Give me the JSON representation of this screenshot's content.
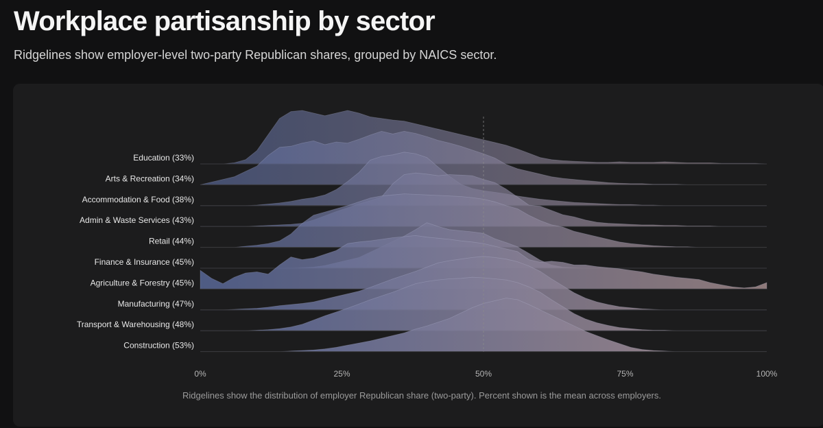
{
  "header": {
    "title": "Workplace partisanship by sector",
    "subtitle": "Ridgelines show employer-level two-party Republican shares, grouped by NAICS sector."
  },
  "caption": "Ridgelines show the distribution of employer Republican share (two-party). Percent shown is the mean across employers.",
  "chart_data": {
    "type": "area",
    "xlim": [
      0,
      100
    ],
    "xticks": [
      "0%",
      "25%",
      "50%",
      "75%",
      "100%"
    ],
    "reference_line": 50,
    "colors": {
      "low": "#5a6a9c",
      "high": "#a88f90"
    },
    "x": [
      0,
      2,
      4,
      6,
      8,
      10,
      12,
      14,
      16,
      18,
      20,
      22,
      24,
      26,
      28,
      30,
      32,
      34,
      36,
      38,
      40,
      42,
      44,
      46,
      48,
      50,
      52,
      54,
      56,
      58,
      60,
      62,
      64,
      66,
      68,
      70,
      72,
      74,
      76,
      78,
      80,
      82,
      84,
      86,
      88,
      90,
      92,
      94,
      96,
      98,
      100
    ],
    "series": [
      {
        "label": "Education (33%)",
        "mean": 33,
        "values": [
          0,
          0,
          0,
          0.02,
          0.08,
          0.25,
          0.55,
          0.85,
          0.98,
          1.0,
          0.95,
          0.9,
          0.95,
          1.0,
          0.95,
          0.88,
          0.85,
          0.82,
          0.8,
          0.75,
          0.7,
          0.65,
          0.6,
          0.55,
          0.5,
          0.45,
          0.4,
          0.35,
          0.28,
          0.2,
          0.12,
          0.08,
          0.06,
          0.05,
          0.04,
          0.03,
          0.03,
          0.04,
          0.03,
          0.03,
          0.03,
          0.04,
          0.03,
          0.02,
          0.02,
          0.02,
          0.01,
          0.01,
          0.01,
          0.01,
          0
        ]
      },
      {
        "label": "Arts & Recreation (34%)",
        "mean": 34,
        "values": [
          0,
          0.05,
          0.1,
          0.15,
          0.25,
          0.35,
          0.55,
          0.7,
          0.72,
          0.78,
          0.82,
          0.75,
          0.8,
          0.78,
          0.85,
          0.93,
          1.0,
          0.95,
          1.0,
          0.96,
          0.9,
          0.83,
          0.78,
          0.72,
          0.65,
          0.58,
          0.5,
          0.38,
          0.3,
          0.25,
          0.2,
          0.15,
          0.12,
          0.1,
          0.08,
          0.06,
          0.04,
          0.03,
          0.02,
          0.02,
          0.01,
          0.01,
          0.01,
          0,
          0,
          0,
          0,
          0,
          0,
          0,
          0
        ]
      },
      {
        "label": "Accommodation & Food (38%)",
        "mean": 38,
        "values": [
          0,
          0,
          0,
          0,
          0,
          0.01,
          0.03,
          0.05,
          0.08,
          0.12,
          0.15,
          0.2,
          0.3,
          0.45,
          0.62,
          0.85,
          0.92,
          0.95,
          1.0,
          0.97,
          0.9,
          0.72,
          0.55,
          0.4,
          0.32,
          0.28,
          0.25,
          0.22,
          0.18,
          0.15,
          0.12,
          0.1,
          0.08,
          0.06,
          0.05,
          0.04,
          0.03,
          0.02,
          0.02,
          0.01,
          0.01,
          0,
          0,
          0,
          0,
          0,
          0,
          0,
          0,
          0,
          0
        ]
      },
      {
        "label": "Admin & Waste Services (43%)",
        "mean": 43,
        "values": [
          0,
          0,
          0,
          0,
          0,
          0.01,
          0.02,
          0.03,
          0.04,
          0.06,
          0.12,
          0.2,
          0.28,
          0.35,
          0.42,
          0.48,
          0.55,
          0.8,
          0.97,
          1.0,
          0.98,
          0.95,
          0.97,
          0.96,
          0.95,
          0.88,
          0.82,
          0.7,
          0.55,
          0.4,
          0.38,
          0.3,
          0.22,
          0.18,
          0.12,
          0.08,
          0.06,
          0.05,
          0.04,
          0.03,
          0.03,
          0.02,
          0.02,
          0.01,
          0.01,
          0.01,
          0,
          0,
          0,
          0,
          0
        ]
      },
      {
        "label": "Retail (44%)",
        "mean": 44,
        "values": [
          0,
          0,
          0,
          0,
          0.02,
          0.04,
          0.07,
          0.12,
          0.25,
          0.45,
          0.6,
          0.66,
          0.72,
          0.78,
          0.85,
          0.92,
          0.96,
          0.98,
          1.0,
          0.99,
          0.98,
          0.97,
          0.96,
          0.95,
          0.93,
          0.9,
          0.85,
          0.78,
          0.72,
          0.6,
          0.5,
          0.42,
          0.38,
          0.3,
          0.25,
          0.2,
          0.15,
          0.1,
          0.07,
          0.05,
          0.03,
          0.02,
          0.01,
          0.01,
          0,
          0,
          0,
          0,
          0,
          0,
          0
        ]
      },
      {
        "label": "Finance & Insurance (45%)",
        "mean": 45,
        "values": [
          0,
          0,
          0,
          0,
          0,
          0,
          0,
          0,
          0,
          0.01,
          0.02,
          0.05,
          0.1,
          0.15,
          0.2,
          0.3,
          0.4,
          0.5,
          0.6,
          0.72,
          0.85,
          0.78,
          0.72,
          0.7,
          0.68,
          0.65,
          0.55,
          0.48,
          0.4,
          0.28,
          0.15,
          0.06,
          0.02,
          0.01,
          0,
          0,
          0,
          0,
          0,
          0,
          0,
          0,
          0,
          0,
          0,
          0,
          0,
          0,
          0,
          0,
          0
        ]
      },
      {
        "label": "Agriculture & Forestry (45%)",
        "mean": 45,
        "values": [
          0.35,
          0.2,
          0.1,
          0.22,
          0.3,
          0.32,
          0.28,
          0.45,
          0.6,
          0.55,
          0.58,
          0.65,
          0.72,
          0.85,
          0.88,
          0.9,
          0.93,
          0.96,
          0.98,
          1.0,
          0.97,
          0.95,
          0.93,
          0.9,
          0.88,
          0.85,
          0.8,
          0.75,
          0.7,
          0.55,
          0.5,
          0.52,
          0.5,
          0.45,
          0.45,
          0.42,
          0.4,
          0.38,
          0.35,
          0.32,
          0.28,
          0.25,
          0.22,
          0.2,
          0.18,
          0.12,
          0.08,
          0.04,
          0.02,
          0.04,
          0.12
        ]
      },
      {
        "label": "Manufacturing (47%)",
        "mean": 47,
        "values": [
          0,
          0,
          0,
          0.01,
          0.02,
          0.03,
          0.05,
          0.08,
          0.1,
          0.12,
          0.15,
          0.2,
          0.25,
          0.3,
          0.35,
          0.42,
          0.5,
          0.58,
          0.65,
          0.72,
          0.8,
          0.88,
          0.92,
          0.95,
          0.98,
          1.0,
          0.98,
          0.95,
          0.9,
          0.82,
          0.72,
          0.58,
          0.45,
          0.32,
          0.22,
          0.15,
          0.1,
          0.06,
          0.04,
          0.02,
          0.01,
          0,
          0,
          0,
          0,
          0,
          0,
          0,
          0,
          0,
          0
        ]
      },
      {
        "label": "Transport & Warehousing (48%)",
        "mean": 48,
        "values": [
          0,
          0,
          0,
          0,
          0,
          0.01,
          0.02,
          0.04,
          0.07,
          0.12,
          0.2,
          0.28,
          0.35,
          0.42,
          0.5,
          0.58,
          0.65,
          0.72,
          0.8,
          0.88,
          0.92,
          0.95,
          0.97,
          0.98,
          1.0,
          0.99,
          0.97,
          0.95,
          0.9,
          0.82,
          0.72,
          0.58,
          0.45,
          0.32,
          0.22,
          0.15,
          0.1,
          0.06,
          0.04,
          0.02,
          0.01,
          0.01,
          0,
          0,
          0,
          0,
          0,
          0,
          0,
          0,
          0
        ]
      },
      {
        "label": "Construction (53%)",
        "mean": 53,
        "values": [
          0,
          0,
          0,
          0,
          0,
          0,
          0,
          0,
          0.01,
          0.02,
          0.03,
          0.05,
          0.08,
          0.12,
          0.16,
          0.2,
          0.25,
          0.3,
          0.35,
          0.42,
          0.48,
          0.55,
          0.62,
          0.72,
          0.82,
          0.9,
          0.95,
          1.0,
          0.97,
          0.88,
          0.78,
          0.68,
          0.58,
          0.48,
          0.38,
          0.3,
          0.22,
          0.15,
          0.08,
          0.04,
          0.02,
          0.01,
          0,
          0,
          0,
          0,
          0,
          0,
          0,
          0,
          0
        ]
      }
    ]
  }
}
